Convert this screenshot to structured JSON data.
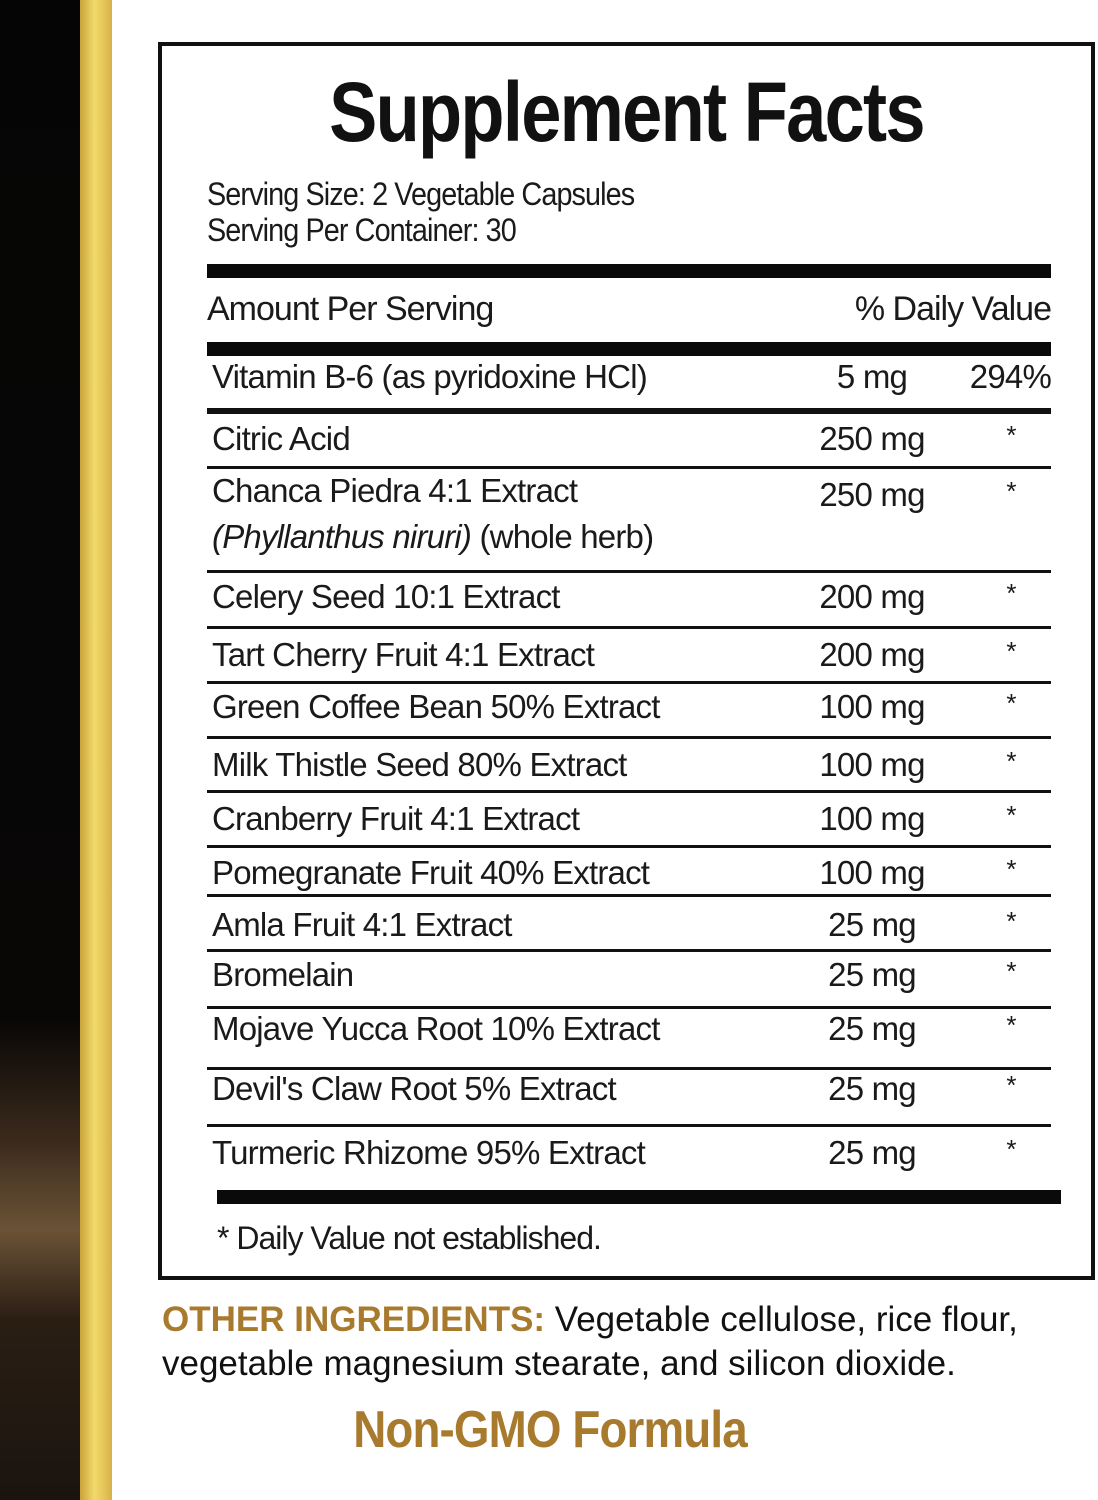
{
  "title": "Supplement Facts",
  "serving_size": "Serving Size: 2 Vegetable Capsules",
  "servings_per_container": "Serving Per Container: 30",
  "header": {
    "amount": "Amount Per Serving",
    "daily_value": "% Daily Value"
  },
  "rows": [
    {
      "name": "Vitamin B-6 (as pyridoxine HCl)",
      "amount": "5 mg",
      "dv": "294%"
    },
    {
      "name": "Citric Acid",
      "amount": "250 mg",
      "dv": "*"
    },
    {
      "name": "Chanca Piedra 4:1 Extract",
      "name_latin": "(Phyllanthus niruri)",
      "name_part": " (whole herb)",
      "amount": "250 mg",
      "dv": "*"
    },
    {
      "name": "Celery Seed 10:1 Extract",
      "amount": "200 mg",
      "dv": "*"
    },
    {
      "name": "Tart Cherry Fruit 4:1 Extract",
      "amount": "200 mg",
      "dv": "*"
    },
    {
      "name": "Green Coffee Bean 50% Extract",
      "amount": "100 mg",
      "dv": "*"
    },
    {
      "name": "Milk Thistle Seed 80% Extract",
      "amount": "100 mg",
      "dv": "*"
    },
    {
      "name": "Cranberry Fruit 4:1 Extract",
      "amount": "100 mg",
      "dv": "*"
    },
    {
      "name": "Pomegranate Fruit 40% Extract",
      "amount": "100 mg",
      "dv": "*"
    },
    {
      "name": "Amla Fruit 4:1 Extract",
      "amount": "25 mg",
      "dv": "*"
    },
    {
      "name": "Bromelain",
      "amount": "25 mg",
      "dv": "*"
    },
    {
      "name": "Mojave Yucca Root 10% Extract",
      "amount": "25 mg",
      "dv": "*"
    },
    {
      "name": "Devil's Claw Root 5% Extract",
      "amount": "25 mg",
      "dv": "*"
    },
    {
      "name": "Turmeric Rhizome 95% Extract",
      "amount": "25 mg",
      "dv": "*"
    }
  ],
  "footnote": "* Daily Value not established.",
  "other_ingredients": {
    "label": "OTHER INGREDIENTS:",
    "text": " Vegetable cellulose, rice flour, vegetable magnesium stearate, and silicon dioxide."
  },
  "badge": "Non-GMO Formula",
  "colors": {
    "accent": "#a87a2d",
    "gold_strip": "#e8c95a",
    "dark_strip": "#050505"
  }
}
